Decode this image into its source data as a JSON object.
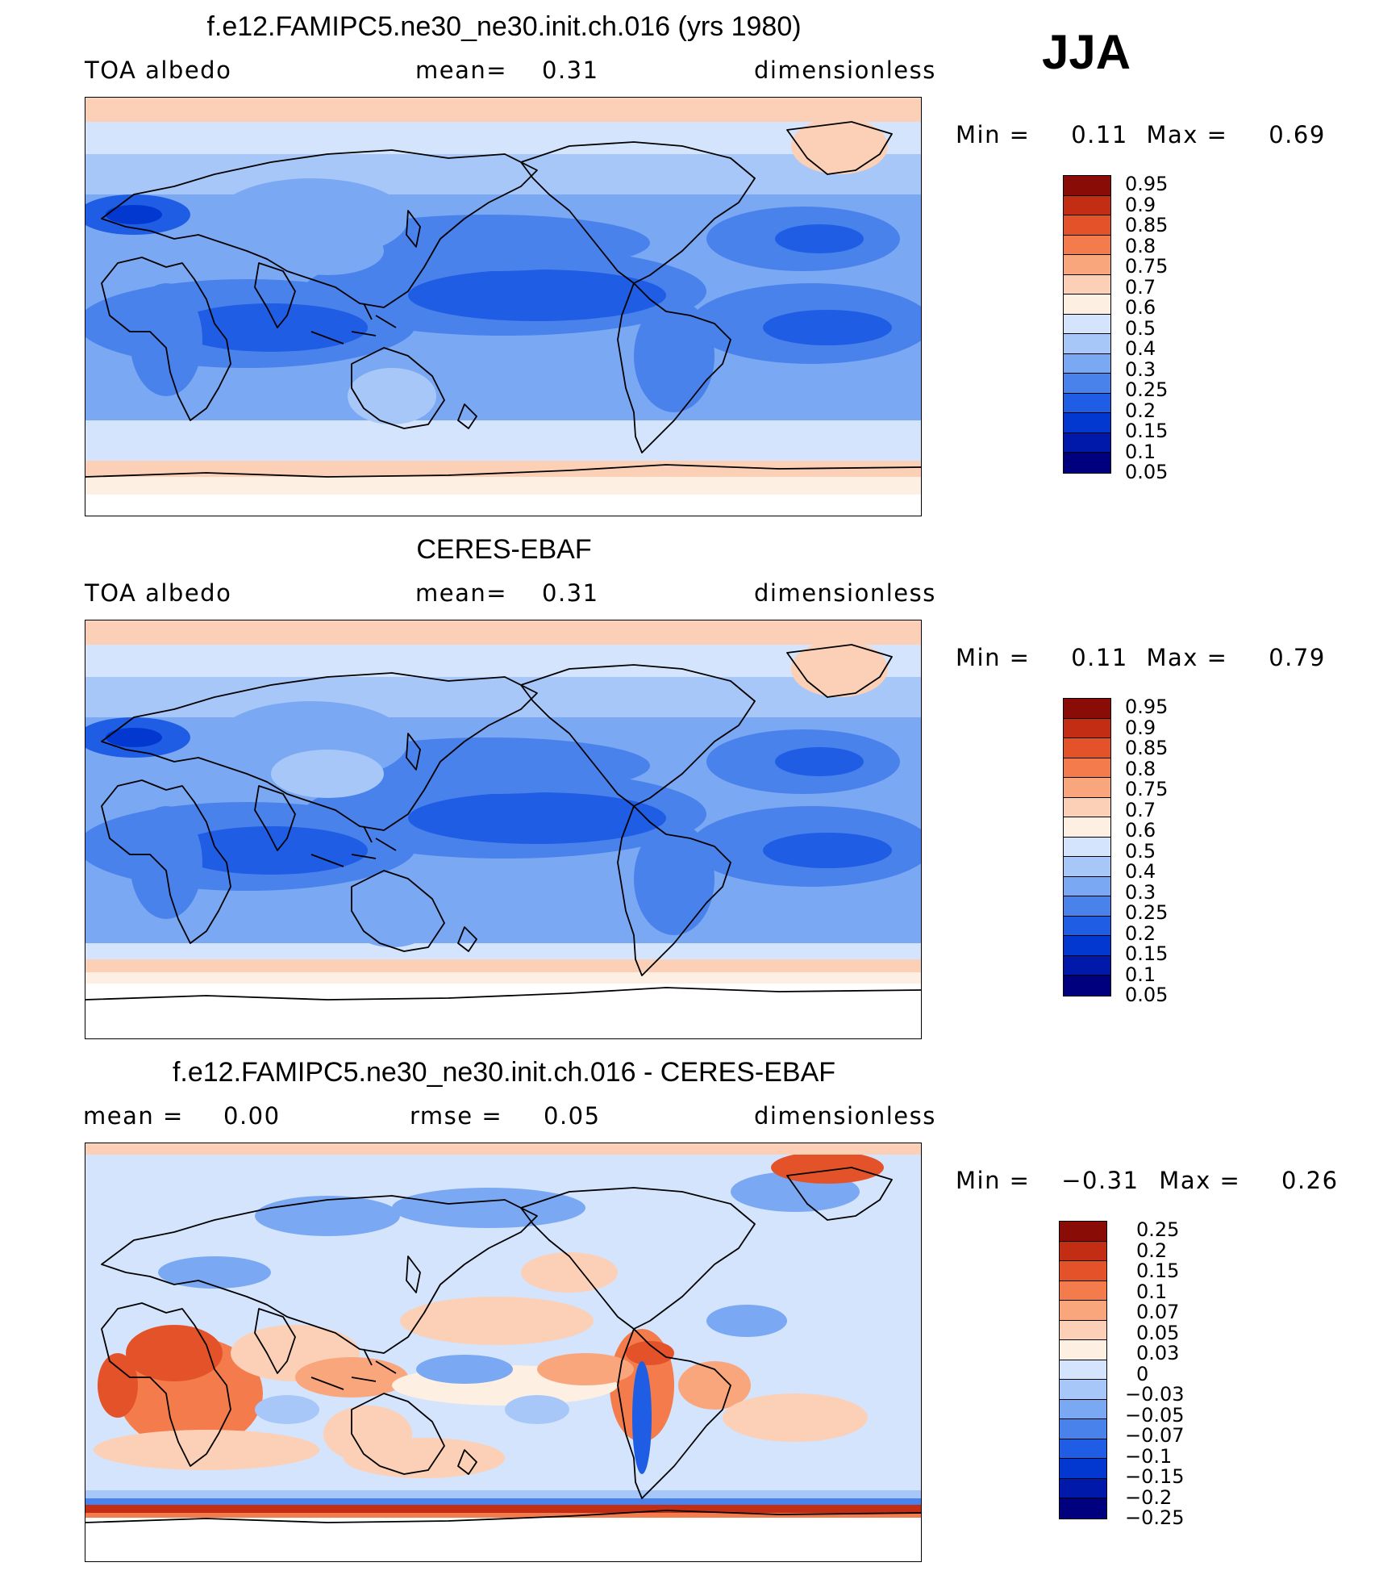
{
  "season": "JJA",
  "colors": {
    "abs": [
      "#00007f",
      "#0019aa",
      "#0238d0",
      "#1f5de4",
      "#4a82ec",
      "#7aa8f3",
      "#a7c7f8",
      "#d3e4fc",
      "#fdefe1",
      "#fcd0b6",
      "#f9a67c",
      "#f37b4c",
      "#e4522a",
      "#c22d14",
      "#8a0c07"
    ],
    "diff": [
      "#00007f",
      "#0019aa",
      "#0238d0",
      "#1f5de4",
      "#4a82ec",
      "#7aa8f3",
      "#a7c7f8",
      "#d3e4fc",
      "#fdefe1",
      "#fcd0b6",
      "#f9a67c",
      "#f37b4c",
      "#e4522a",
      "#c22d14",
      "#8a0c07"
    ]
  },
  "panels": [
    {
      "title": "f.e12.FAMIPC5.ne30_ne30.init.ch.016 (yrs 1980)",
      "left_text": "TOA  albedo",
      "mid_label": "mean=",
      "mid_value": "0.31",
      "right_text": "dimensionless",
      "min_label": "Min  =",
      "min_value": "0.11",
      "max_label": "Max  =",
      "max_value": "0.69",
      "colorbar_labels": [
        "0.95",
        "0.9",
        "0.85",
        "0.8",
        "0.75",
        "0.7",
        "0.6",
        "0.5",
        "0.4",
        "0.3",
        "0.25",
        "0.2",
        "0.15",
        "0.1",
        "0.05"
      ]
    },
    {
      "title": "CERES-EBAF",
      "left_text": "TOA  albedo",
      "mid_label": "mean=",
      "mid_value": "0.31",
      "right_text": "dimensionless",
      "min_label": "Min  =",
      "min_value": "0.11",
      "max_label": "Max  =",
      "max_value": "0.79",
      "colorbar_labels": [
        "0.95",
        "0.9",
        "0.85",
        "0.8",
        "0.75",
        "0.7",
        "0.6",
        "0.5",
        "0.4",
        "0.3",
        "0.25",
        "0.2",
        "0.15",
        "0.1",
        "0.05"
      ]
    },
    {
      "title": "f.e12.FAMIPC5.ne30_ne30.init.ch.016 - CERES-EBAF",
      "left_text": "mean  =",
      "left_value": "0.00",
      "mid_label": "rmse  =",
      "mid_value": "0.05",
      "right_text": "dimensionless",
      "min_label": "Min  =",
      "min_value": "−0.31",
      "max_label": "Max  =",
      "max_value": "0.26",
      "colorbar_labels": [
        "0.25",
        "0.2",
        "0.15",
        "0.1",
        "0.07",
        "0.05",
        "0.03",
        "0",
        "−0.03",
        "−0.05",
        "−0.07",
        "−0.1",
        "−0.15",
        "−0.2",
        "−0.25"
      ]
    }
  ],
  "chart_data": [
    {
      "type": "heatmap",
      "title": "f.e12.FAMIPC5.ne30_ne30.init.ch.016 (yrs 1980)",
      "variable": "TOA albedo",
      "units": "dimensionless",
      "mean": 0.31,
      "min": 0.11,
      "max": 0.69,
      "contour_levels": [
        0.05,
        0.1,
        0.15,
        0.2,
        0.25,
        0.3,
        0.4,
        0.5,
        0.6,
        0.7,
        0.75,
        0.8,
        0.85,
        0.9,
        0.95
      ]
    },
    {
      "type": "heatmap",
      "title": "CERES-EBAF",
      "variable": "TOA albedo",
      "units": "dimensionless",
      "mean": 0.31,
      "min": 0.11,
      "max": 0.79,
      "contour_levels": [
        0.05,
        0.1,
        0.15,
        0.2,
        0.25,
        0.3,
        0.4,
        0.5,
        0.6,
        0.7,
        0.75,
        0.8,
        0.85,
        0.9,
        0.95
      ]
    },
    {
      "type": "heatmap",
      "title": "f.e12.FAMIPC5.ne30_ne30.init.ch.016 - CERES-EBAF",
      "units": "dimensionless",
      "mean": 0.0,
      "rmse": 0.05,
      "min": -0.31,
      "max": 0.26,
      "contour_levels": [
        -0.25,
        -0.2,
        -0.15,
        -0.1,
        -0.07,
        -0.05,
        -0.03,
        0,
        0.03,
        0.05,
        0.07,
        0.1,
        0.15,
        0.2,
        0.25
      ]
    }
  ]
}
